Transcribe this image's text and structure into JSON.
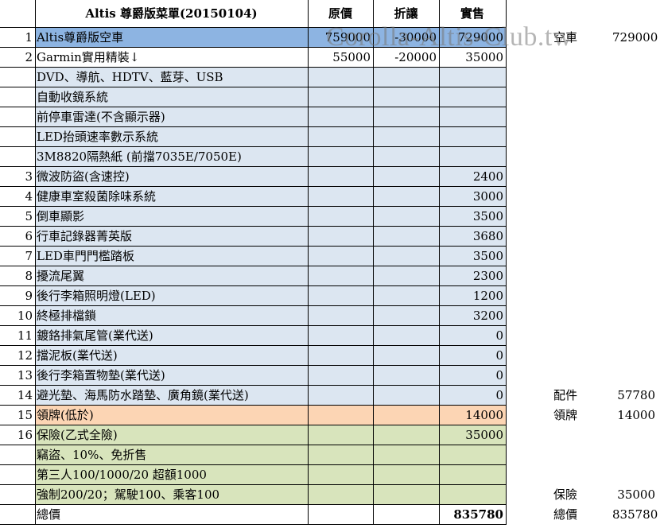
{
  "header": {
    "title": "Altis 尊爵版菜單(20150104)",
    "col_original": "原價",
    "col_discount": "折讓",
    "col_price": "實售"
  },
  "colors": {
    "row1_fill": "#8db4e2",
    "items_fill": "#dce6f1",
    "plate_fill": "#fcd5b4",
    "insurance_fill": "#d8e4bc",
    "grid": "#000000"
  },
  "rows": [
    {
      "no": "1",
      "item": "Altis尊爵版空車",
      "original": "759000",
      "discount": "-30000",
      "price": "729000",
      "fill": "row1"
    },
    {
      "no": "2",
      "item": "Garmin實用精裝↓",
      "original": "55000",
      "discount": "-20000",
      "price": "35000",
      "fill": "none"
    },
    {
      "no": "",
      "item": "DVD、導航、HDTV、藍芽、USB",
      "original": "",
      "discount": "",
      "price": "",
      "fill": "items"
    },
    {
      "no": "",
      "item": "自動收鏡系統",
      "original": "",
      "discount": "",
      "price": "",
      "fill": "items"
    },
    {
      "no": "",
      "item": "前停車雷達(不含顯示器)",
      "original": "",
      "discount": "",
      "price": "",
      "fill": "items"
    },
    {
      "no": "",
      "item": "LED抬頭速率數示系統",
      "original": "",
      "discount": "",
      "price": "",
      "fill": "items"
    },
    {
      "no": "",
      "item": "3M8820隔熱紙 (前擋7035E/7050E)",
      "original": "",
      "discount": "",
      "price": "",
      "fill": "items"
    },
    {
      "no": "3",
      "item": "微波防盜(含速控)",
      "original": "",
      "discount": "",
      "price": "2400",
      "fill": "items"
    },
    {
      "no": "4",
      "item": "健康車室殺菌除味系統",
      "original": "",
      "discount": "",
      "price": "3000",
      "fill": "items"
    },
    {
      "no": "5",
      "item": "倒車顯影",
      "original": "",
      "discount": "",
      "price": "3500",
      "fill": "items"
    },
    {
      "no": "6",
      "item": "行車記錄器菁英版",
      "original": "",
      "discount": "",
      "price": "3680",
      "fill": "items"
    },
    {
      "no": "7",
      "item": "LED車門門檻踏板",
      "original": "",
      "discount": "",
      "price": "3500",
      "fill": "items"
    },
    {
      "no": "8",
      "item": "擾流尾翼",
      "original": "",
      "discount": "",
      "price": "2300",
      "fill": "items"
    },
    {
      "no": "9",
      "item": "後行李箱照明燈(LED)",
      "original": "",
      "discount": "",
      "price": "1200",
      "fill": "items"
    },
    {
      "no": "10",
      "item": "終極排檔鎖",
      "original": "",
      "discount": "",
      "price": "3200",
      "fill": "items"
    },
    {
      "no": "11",
      "item": "鍍鉻排氣尾管(業代送)",
      "original": "",
      "discount": "",
      "price": "0",
      "fill": "items"
    },
    {
      "no": "12",
      "item": "擋泥板(業代送)",
      "original": "",
      "discount": "",
      "price": "0",
      "fill": "items"
    },
    {
      "no": "13",
      "item": "後行李箱置物墊(業代送)",
      "original": "",
      "discount": "",
      "price": "0",
      "fill": "items"
    },
    {
      "no": "14",
      "item": "避光墊、海馬防水踏墊、廣角鏡(業代送)",
      "original": "",
      "discount": "",
      "price": "0",
      "fill": "items"
    },
    {
      "no": "15",
      "item": "領牌(低於)",
      "original": "",
      "discount": "",
      "price": "14000",
      "fill": "plate"
    },
    {
      "no": "16",
      "item": "保險(乙式全險)",
      "original": "",
      "discount": "",
      "price": "35000",
      "fill": "ins"
    },
    {
      "no": "",
      "item": "竊盜、10%、免折售",
      "original": "",
      "discount": "",
      "price": "",
      "fill": "ins"
    },
    {
      "no": "",
      "item": "第三人100/1000/20 超額1000",
      "original": "",
      "discount": "",
      "price": "",
      "fill": "ins"
    },
    {
      "no": "",
      "item": "強制200/20；駕駛100、乘客100",
      "original": "",
      "discount": "",
      "price": "",
      "fill": "ins"
    },
    {
      "no": "",
      "item": "總價",
      "original": "",
      "discount": "",
      "price": "835780",
      "fill": "none",
      "bold_price": true
    }
  ],
  "summary": [
    {
      "row": 0,
      "label": "空車",
      "value": "729000"
    },
    {
      "row": 18,
      "label": "配件",
      "value": "57780"
    },
    {
      "row": 19,
      "label": "領牌",
      "value": "14000"
    },
    {
      "row": 23,
      "label": "保險",
      "value": "35000"
    },
    {
      "row": 24,
      "label": "總價",
      "value": "835780"
    }
  ],
  "watermark": "Corolla-Altis-Club.tw"
}
